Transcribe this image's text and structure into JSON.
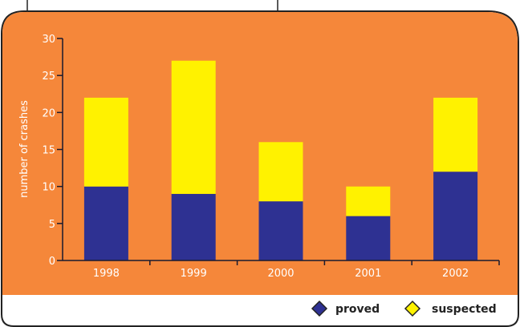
{
  "chart_data": {
    "type": "bar",
    "stacked": true,
    "categories": [
      "1998",
      "1999",
      "2000",
      "2001",
      "2002"
    ],
    "series": [
      {
        "name": "proved",
        "values": [
          10,
          9,
          8,
          6,
          12
        ],
        "color": "#2e3192"
      },
      {
        "name": "suspected",
        "values": [
          12,
          18,
          8,
          4,
          10
        ],
        "color": "#fff200"
      }
    ],
    "title": "",
    "xlabel": "",
    "ylabel": "number of crashes",
    "ylim": [
      0,
      30
    ],
    "yticks": [
      0,
      5,
      10,
      15,
      20,
      25,
      30
    ],
    "grid": false,
    "legend": "bottom-right"
  },
  "colors": {
    "plot_background": "#f5873a",
    "frame": "#222222",
    "axis": "#1a1a2e",
    "text_on_plot": "#ffffff"
  }
}
